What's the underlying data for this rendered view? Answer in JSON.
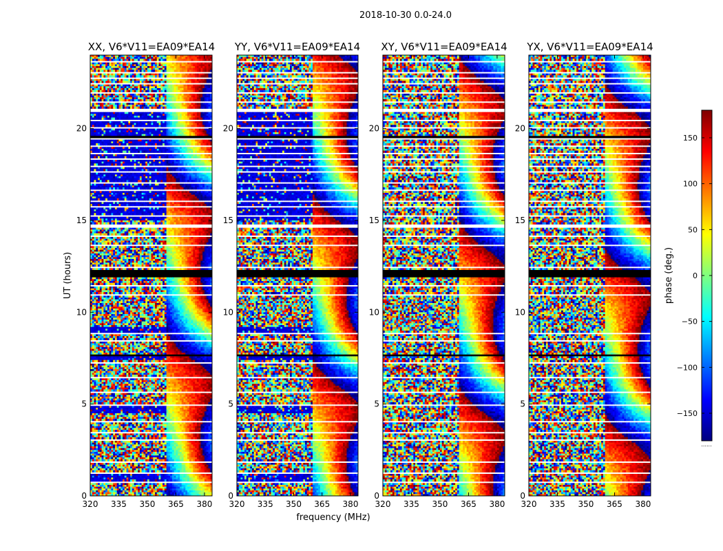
{
  "figure": {
    "suptitle": "2018-10-30 0.0-24.0",
    "colorbar_label": "phase (deg.)",
    "colorbar_ticks": [
      150,
      100,
      50,
      0,
      -50,
      -100,
      -150
    ],
    "colorbar_tick_labels": [
      "150",
      "100",
      "50",
      "0",
      "−50",
      "−100",
      "−150"
    ],
    "colorbar_range": [
      -180,
      180
    ],
    "colorbar_footnote": "......",
    "colormap": [
      "#00007f",
      "#0000ff",
      "#007fff",
      "#00ffff",
      "#7fff7f",
      "#ffff00",
      "#ff7f00",
      "#ff0000",
      "#7f0000"
    ],
    "flag_color": "#ffffff",
    "dead_color": "#000000"
  },
  "chart_data": [
    {
      "type": "heatmap",
      "title": "XX, V6*V11=EA09*EA14",
      "xlabel": "",
      "ylabel": "UT (hours)",
      "xlim": [
        320,
        384
      ],
      "ylim": [
        0,
        24
      ],
      "xticks": [
        320,
        335,
        350,
        365,
        380
      ],
      "yticks": [
        0,
        5,
        10,
        15,
        20
      ],
      "value": "phase (deg.)",
      "coherent_band_mhz": [
        360,
        384
      ],
      "pattern": "parallel"
    },
    {
      "type": "heatmap",
      "title": "YY, V6*V11=EA09*EA14",
      "xlabel": "frequency (MHz)",
      "ylabel": "",
      "xlim": [
        320,
        384
      ],
      "ylim": [
        0,
        24
      ],
      "xticks": [
        320,
        335,
        350,
        365,
        380
      ],
      "yticks": [
        0,
        5,
        10,
        15,
        20
      ],
      "value": "phase (deg.)",
      "coherent_band_mhz": [
        360,
        384
      ],
      "pattern": "parallel"
    },
    {
      "type": "heatmap",
      "title": "XY, V6*V11=EA09*EA14",
      "xlabel": "",
      "ylabel": "",
      "xlim": [
        320,
        384
      ],
      "ylim": [
        0,
        24
      ],
      "xticks": [
        320,
        335,
        350,
        365,
        380
      ],
      "yticks": [
        0,
        5,
        10,
        15,
        20
      ],
      "value": "phase (deg.)",
      "coherent_band_mhz": [
        360,
        384
      ],
      "pattern": "cross"
    },
    {
      "type": "heatmap",
      "title": "YX, V6*V11=EA09*EA14",
      "xlabel": "",
      "ylabel": "",
      "xlim": [
        320,
        384
      ],
      "ylim": [
        0,
        24
      ],
      "xticks": [
        320,
        335,
        350,
        365,
        380
      ],
      "yticks": [
        0,
        5,
        10,
        15,
        20
      ],
      "value": "phase (deg.)",
      "coherent_band_mhz": [
        360,
        384
      ],
      "pattern": "cross"
    }
  ],
  "flagged_ut_hours": [
    [
      0.15,
      0.25
    ],
    [
      0.75,
      0.8
    ],
    [
      1.2,
      1.3
    ],
    [
      1.8,
      1.85
    ],
    [
      2.15,
      2.2
    ],
    [
      2.5,
      2.55
    ],
    [
      3.05,
      3.1
    ],
    [
      3.4,
      3.5
    ],
    [
      3.7,
      3.75
    ],
    [
      4.05,
      4.1
    ],
    [
      4.35,
      4.4
    ],
    [
      4.85,
      4.95
    ],
    [
      5.6,
      5.65
    ],
    [
      6.0,
      6.05
    ],
    [
      6.35,
      6.45
    ],
    [
      6.65,
      6.7
    ],
    [
      7.25,
      7.3
    ],
    [
      7.7,
      7.75
    ],
    [
      8.45,
      8.5
    ],
    [
      8.8,
      8.85
    ],
    [
      9.55,
      9.6
    ],
    [
      10.05,
      10.1
    ],
    [
      10.55,
      10.6
    ],
    [
      10.95,
      11.0
    ],
    [
      11.45,
      11.5
    ],
    [
      12.45,
      12.5
    ],
    [
      13.6,
      13.65
    ],
    [
      14.1,
      14.15
    ],
    [
      14.6,
      14.75
    ],
    [
      15.15,
      15.25
    ],
    [
      15.65,
      15.75
    ],
    [
      16.05,
      16.1
    ],
    [
      16.6,
      16.65
    ],
    [
      17.05,
      17.1
    ],
    [
      17.6,
      17.65
    ],
    [
      17.95,
      18.0
    ],
    [
      18.3,
      18.35
    ],
    [
      18.6,
      18.65
    ],
    [
      19.0,
      19.1
    ],
    [
      19.4,
      19.45
    ],
    [
      20.0,
      20.05
    ],
    [
      20.45,
      20.5
    ],
    [
      20.95,
      21.05
    ],
    [
      21.4,
      21.5
    ],
    [
      21.95,
      22.0
    ],
    [
      22.35,
      22.45
    ],
    [
      22.75,
      22.8
    ],
    [
      23.05,
      23.1
    ],
    [
      23.35,
      23.4
    ],
    [
      23.6,
      23.65
    ]
  ],
  "dead_ut_hours": [
    [
      11.9,
      12.3
    ],
    [
      19.5,
      19.58
    ],
    [
      7.6,
      7.66
    ]
  ]
}
